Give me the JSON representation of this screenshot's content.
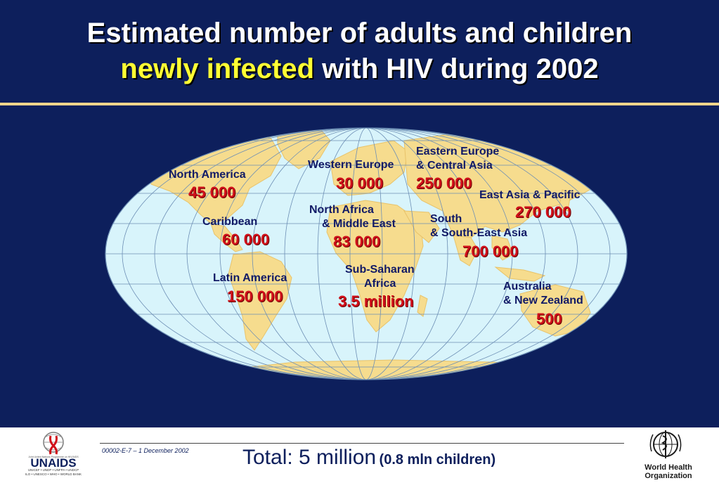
{
  "title": {
    "line1": "Estimated number of adults and children",
    "line2_highlight": "newly infected",
    "line2_rest": " with HIV during 2002"
  },
  "regions": [
    {
      "name": "North America",
      "value": "45 000"
    },
    {
      "name": "Caribbean",
      "value": "60 000"
    },
    {
      "name": "Latin America",
      "value": "150 000"
    },
    {
      "name": "Western Europe",
      "value": "30 000"
    },
    {
      "name_line1": "North Africa",
      "name_line2": "& Middle East",
      "value": "83 000"
    },
    {
      "name_line1": "Sub-Saharan",
      "name_line2": "Africa",
      "value": "3.5 million"
    },
    {
      "name_line1": "Eastern Europe",
      "name_line2": "& Central Asia",
      "value": "250 000"
    },
    {
      "name": "East Asia & Pacific",
      "value": "270 000"
    },
    {
      "name_line1": "South",
      "name_line2": "& South-East Asia",
      "value": "700 000"
    },
    {
      "name_line1": "Australia",
      "name_line2": "& New Zealand",
      "value": "500"
    }
  ],
  "footer": {
    "doc_code": "00002-E-7 – 1 December 2002",
    "total_main": "Total: 5 million",
    "total_sub": "(0.8 mln children)",
    "unaids_logo_text": "UNAIDS",
    "unaids_sub_line1": "Joint United Nations Programme on HIV/AIDS",
    "unaids_sub_line2": "UNICEF • UNDP • UNFPA • UNDCP",
    "unaids_sub_line3": "ILO • UNESCO • WHO • WORLD BANK",
    "who_line1": "World Health",
    "who_line2": "Organization"
  },
  "colors": {
    "background": "#0d1f5c",
    "ocean": "#d8f4fb",
    "land": "#f6dc8e",
    "value_red": "#d0101a",
    "label_navy": "#111a66",
    "title_highlight": "#ffff33"
  }
}
